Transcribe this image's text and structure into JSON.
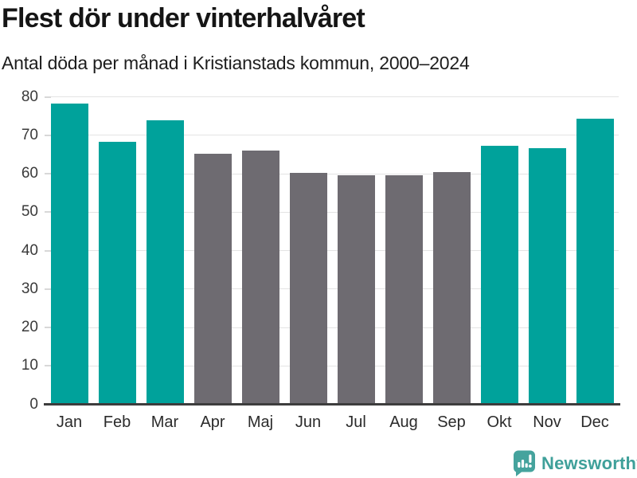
{
  "header": {
    "title": "Flest dör under vinterhalvåret",
    "subtitle": "Antal döda per månad i Kristianstads kommun, 2000–2024"
  },
  "chart_data": {
    "type": "bar",
    "title": "Flest dör under vinterhalvåret",
    "subtitle": "Antal döda per månad i Kristianstads kommun, 2000–2024",
    "categories": [
      "Jan",
      "Feb",
      "Mar",
      "Apr",
      "Maj",
      "Jun",
      "Jul",
      "Aug",
      "Sep",
      "Okt",
      "Nov",
      "Dec"
    ],
    "values": [
      78.3,
      68.2,
      73.9,
      65.1,
      66.1,
      60.2,
      59.6,
      59.6,
      60.4,
      67.2,
      66.6,
      74.3
    ],
    "highlight_winter": [
      true,
      true,
      true,
      false,
      false,
      false,
      false,
      false,
      false,
      true,
      true,
      true
    ],
    "xlabel": "",
    "ylabel": "",
    "ylim": [
      0,
      80
    ],
    "ytick_step": 10,
    "yticks": [
      0,
      10,
      20,
      30,
      40,
      50,
      60,
      70,
      80
    ],
    "grid": true,
    "legend": "none",
    "colors": {
      "winter_bar": "#00a29b",
      "summer_bar": "#6e6b71",
      "gridline": "#e3e3e3",
      "axis_line": "#3d3d3d",
      "label_text": "#3a3a3a"
    }
  },
  "branding": {
    "label": "Newsworthy",
    "logo_icon": "newsworthy-speech-bubble-bar-chart-icon",
    "color": "#3fa09a"
  }
}
